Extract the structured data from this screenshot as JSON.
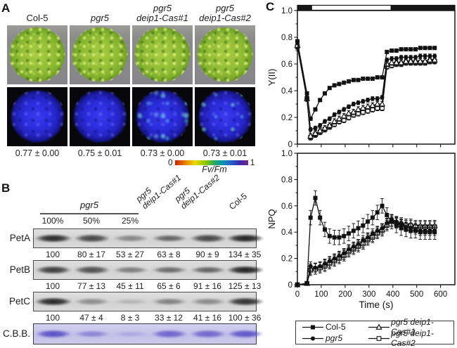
{
  "figure": {
    "panelA_label": "A",
    "panelB_label": "B",
    "panelC_label": "C"
  },
  "panelA": {
    "columns": [
      {
        "name_lines": [
          "Col-5"
        ],
        "italic": false,
        "fvfm": "0.77 ± 0.00",
        "speckle": 0
      },
      {
        "name_lines": [
          "pgr5"
        ],
        "italic": true,
        "fvfm": "0.75 ± 0.01",
        "speckle": 0
      },
      {
        "name_lines": [
          "pgr5",
          "deip1-Cas#1"
        ],
        "italic": true,
        "fvfm": "0.73 ± 0.00",
        "speckle": 3
      },
      {
        "name_lines": [
          "pgr5",
          "deip1-Cas#2"
        ],
        "italic": true,
        "fvfm": "0.73 ± 0.01",
        "speckle": 2
      }
    ],
    "scalebar": {
      "min": "0",
      "max": "1",
      "label": "Fv/Fm"
    }
  },
  "panelB": {
    "group_label": "pgr5",
    "dilutions": [
      "100%",
      "50%",
      "25%"
    ],
    "diag_labels": [
      {
        "lines": [
          "pgr5",
          "deip1-Cas#1"
        ],
        "italic": true
      },
      {
        "lines": [
          "pgr5",
          "deip1-Cas#2"
        ],
        "italic": true
      },
      {
        "lines": [
          "Col-5"
        ],
        "italic": false
      }
    ],
    "rows": [
      {
        "name": "PetA",
        "values": [
          "100",
          "80 ± 17",
          "53 ± 27",
          "63 ± 8",
          "90 ± 9",
          "134 ± 35"
        ],
        "band_alpha": [
          0.92,
          0.78,
          0.42,
          0.62,
          0.78,
          0.97
        ],
        "stain": false
      },
      {
        "name": "PetB",
        "values": [
          "100",
          "77 ± 13",
          "45 ± 11",
          "65 ± 6",
          "91 ± 16",
          "125 ± 13"
        ],
        "band_alpha": [
          0.82,
          0.72,
          0.48,
          0.58,
          0.62,
          0.97
        ],
        "stain": false
      },
      {
        "name": "PetC",
        "values": [
          "100",
          "47 ± 4",
          "8 ± 3",
          "33 ± 12",
          "41 ± 16",
          "100 ± 36"
        ],
        "band_alpha": [
          0.95,
          0.38,
          0.16,
          0.45,
          0.4,
          0.88
        ],
        "stain": false
      },
      {
        "name": "C.B.B.",
        "values": [],
        "band_alpha": [
          0.85,
          0.45,
          0.18,
          0.7,
          0.68,
          0.8
        ],
        "stain": true
      }
    ]
  },
  "chart_data": [
    {
      "type": "line",
      "title": "",
      "ylabel": "Y(II)",
      "xlabel": "",
      "ylim": [
        0,
        1.0
      ],
      "xlim": [
        0,
        660
      ],
      "ytick_vals": [
        0,
        0.2,
        0.4,
        0.6,
        0.8,
        1.0
      ],
      "ytick_labels": [
        "0",
        "0.2",
        "0.4",
        "0.6",
        "0.8",
        "1.0"
      ],
      "xticks": [
        0,
        100,
        200,
        300,
        400,
        500,
        600
      ],
      "xtick_labels": [
        "0",
        "100",
        "200",
        "300",
        "400",
        "500",
        "600"
      ],
      "show_x_tick_labels": false,
      "light_bar": {
        "segments": [
          {
            "from_frac": 0,
            "to_frac": 0.09,
            "fill": "dark"
          },
          {
            "from_frac": 0.09,
            "to_frac": 0.595,
            "fill": "light"
          },
          {
            "from_frac": 0.595,
            "to_frac": 1,
            "fill": "dark"
          }
        ]
      },
      "x": [
        0,
        40,
        55,
        75,
        95,
        115,
        135,
        155,
        175,
        195,
        215,
        235,
        255,
        275,
        295,
        315,
        335,
        355,
        375,
        395,
        415,
        435,
        455,
        475,
        495,
        515,
        535,
        555,
        575
      ],
      "series": [
        {
          "name": "Col-5",
          "marker": "square-filled",
          "err": 0.01,
          "values": [
            0.77,
            0.38,
            0.19,
            0.26,
            0.33,
            0.38,
            0.42,
            0.44,
            0.45,
            0.46,
            0.47,
            0.48,
            0.48,
            0.49,
            0.49,
            0.49,
            0.5,
            0.5,
            0.69,
            0.7,
            0.7,
            0.71,
            0.71,
            0.71,
            0.71,
            0.72,
            0.72,
            0.72,
            0.72
          ]
        },
        {
          "name": "pgr5",
          "marker": "circle-filled",
          "err": 0.015,
          "values": [
            0.76,
            0.34,
            0.11,
            0.12,
            0.14,
            0.17,
            0.19,
            0.22,
            0.24,
            0.26,
            0.28,
            0.3,
            0.31,
            0.32,
            0.33,
            0.34,
            0.34,
            0.35,
            0.63,
            0.64,
            0.64,
            0.65,
            0.65,
            0.65,
            0.65,
            0.66,
            0.66,
            0.66,
            0.66
          ]
        },
        {
          "name": "pgr5 deip1-Cas#1",
          "marker": "triangle-open",
          "err": 0.02,
          "values": [
            0.74,
            0.34,
            0.06,
            0.08,
            0.1,
            0.12,
            0.14,
            0.17,
            0.19,
            0.21,
            0.23,
            0.24,
            0.26,
            0.27,
            0.28,
            0.29,
            0.3,
            0.3,
            0.6,
            0.61,
            0.61,
            0.61,
            0.62,
            0.62,
            0.62,
            0.62,
            0.62,
            0.63,
            0.63
          ]
        },
        {
          "name": "pgr5 deip1-Cas#2",
          "marker": "square-open",
          "err": 0.02,
          "values": [
            0.73,
            0.34,
            0.05,
            0.07,
            0.09,
            0.11,
            0.13,
            0.15,
            0.17,
            0.18,
            0.2,
            0.22,
            0.23,
            0.24,
            0.25,
            0.26,
            0.27,
            0.27,
            0.58,
            0.59,
            0.6,
            0.6,
            0.61,
            0.61,
            0.61,
            0.61,
            0.61,
            0.62,
            0.62
          ]
        }
      ]
    },
    {
      "type": "line",
      "title": "",
      "ylabel": "NPQ",
      "xlabel": "Time (s)",
      "ylim": [
        0,
        1.0
      ],
      "xlim": [
        0,
        660
      ],
      "ytick_vals": [
        0,
        0.2,
        0.4,
        0.6,
        0.8,
        1.0
      ],
      "ytick_labels": [
        "0",
        "0.2",
        "0.4",
        "0.6",
        "0.8",
        "1.0"
      ],
      "xticks": [
        0,
        100,
        200,
        300,
        400,
        500,
        600
      ],
      "xtick_labels": [
        "0",
        "100",
        "200",
        "300",
        "400",
        "500",
        "600"
      ],
      "show_x_tick_labels": true,
      "light_bar": null,
      "x": [
        0,
        40,
        55,
        75,
        95,
        115,
        135,
        155,
        175,
        195,
        215,
        235,
        255,
        275,
        295,
        315,
        335,
        355,
        375,
        395,
        415,
        435,
        455,
        475,
        495,
        515,
        535,
        555,
        575
      ],
      "series": [
        {
          "name": "Col-5",
          "marker": "square-filled",
          "err": 0.055,
          "values": [
            0.0,
            0.01,
            0.51,
            0.66,
            0.51,
            0.42,
            0.37,
            0.36,
            0.36,
            0.37,
            0.39,
            0.41,
            0.43,
            0.45,
            0.48,
            0.51,
            0.55,
            0.6,
            0.53,
            0.48,
            0.45,
            0.43,
            0.42,
            0.41,
            0.41,
            0.4,
            0.4,
            0.4,
            0.4
          ]
        },
        {
          "name": "pgr5",
          "marker": "circle-filled",
          "err": 0.035,
          "values": [
            0.0,
            0.01,
            0.14,
            0.13,
            0.14,
            0.16,
            0.18,
            0.2,
            0.22,
            0.24,
            0.27,
            0.29,
            0.31,
            0.34,
            0.36,
            0.39,
            0.41,
            0.43,
            0.47,
            0.5,
            0.48,
            0.46,
            0.44,
            0.43,
            0.42,
            0.41,
            0.41,
            0.41,
            0.41
          ]
        },
        {
          "name": "pgr5 deip1-Cas#1",
          "marker": "triangle-open",
          "err": 0.04,
          "values": [
            0.0,
            0.01,
            0.12,
            0.12,
            0.13,
            0.15,
            0.17,
            0.19,
            0.21,
            0.23,
            0.26,
            0.28,
            0.3,
            0.32,
            0.35,
            0.37,
            0.4,
            0.42,
            0.46,
            0.49,
            0.48,
            0.47,
            0.46,
            0.46,
            0.45,
            0.45,
            0.45,
            0.45,
            0.45
          ]
        },
        {
          "name": "pgr5 deip1-Cas#2",
          "marker": "square-open",
          "err": 0.04,
          "values": [
            0.0,
            0.01,
            0.11,
            0.12,
            0.13,
            0.14,
            0.16,
            0.18,
            0.2,
            0.22,
            0.25,
            0.27,
            0.29,
            0.31,
            0.34,
            0.36,
            0.39,
            0.41,
            0.45,
            0.48,
            0.47,
            0.46,
            0.45,
            0.45,
            0.44,
            0.44,
            0.44,
            0.44,
            0.44
          ]
        }
      ]
    }
  ],
  "chart_legend": {
    "entries": [
      {
        "label": "Col-5",
        "marker": "square-filled",
        "italic": false
      },
      {
        "label": "pgr5 deip1-Cas#1",
        "marker": "triangle-open",
        "italic": true
      },
      {
        "label": "pgr5",
        "marker": "circle-filled",
        "italic": true
      },
      {
        "label": "pgr5 deip1-Cas#2",
        "marker": "square-open",
        "italic": true
      }
    ]
  }
}
